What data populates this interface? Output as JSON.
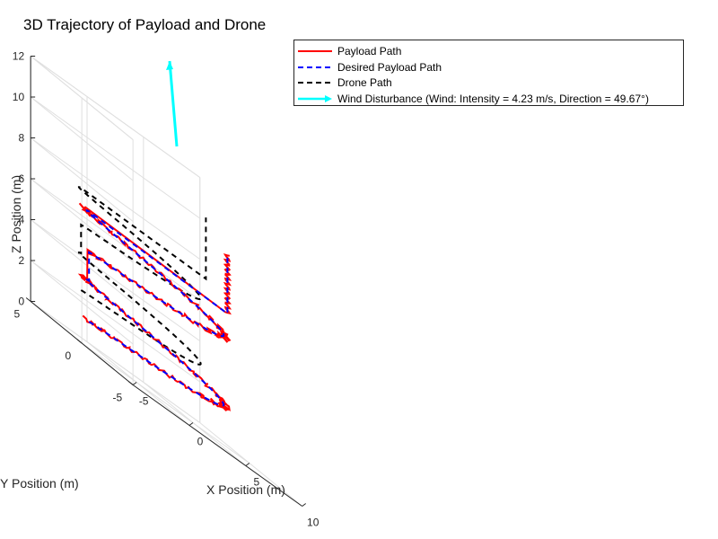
{
  "chart_data": {
    "type": "line",
    "title": "3D Trajectory of Payload and Drone",
    "xlabel": "X Position (m)",
    "ylabel": "Y Position (m)",
    "zlabel": "Z Position (m)",
    "xlim": [
      -5,
      10
    ],
    "ylim": [
      -5,
      5
    ],
    "zlim": [
      0,
      12
    ],
    "xticks": [
      "-5",
      "0",
      "5",
      "10"
    ],
    "yticks": [
      "-5",
      "0",
      "5"
    ],
    "zticks": [
      "0",
      "2",
      "4",
      "6",
      "8",
      "10",
      "12"
    ],
    "grid": true,
    "legend_position": "top-right",
    "series": [
      {
        "name": "Payload Path",
        "color": "#ff0000",
        "style": "solid"
      },
      {
        "name": "Desired Payload Path",
        "color": "#0000ff",
        "style": "dashed"
      },
      {
        "name": "Drone Path",
        "color": "#000000",
        "style": "dashed"
      },
      {
        "name": "Wind Disturbance (Wind: Intensity = 4.23 m/s, Direction = 49.67°)",
        "color": "#00ffff",
        "style": "arrow"
      }
    ]
  },
  "colors": {
    "payload": "#ff0000",
    "desired": "#0000ff",
    "drone": "#000000",
    "wind": "#00ffff",
    "axis": "#262626",
    "grid": "#dfdfdf"
  }
}
